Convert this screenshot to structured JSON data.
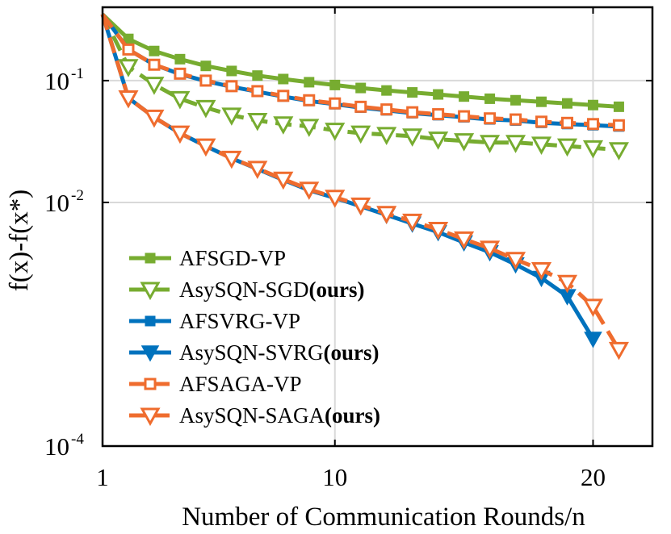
{
  "chart_data": {
    "type": "line",
    "title": "",
    "xlabel": "Number of Communication Rounds/n",
    "ylabel": "f(x)-f(x*)",
    "yscale": "log",
    "xlim": [
      1,
      22.3
    ],
    "ylim": [
      0.0001,
      0.4
    ],
    "x_ticks": [
      {
        "value": 1,
        "label": "1"
      },
      {
        "value": 10,
        "label": "10"
      },
      {
        "value": 20,
        "label": "20"
      }
    ],
    "y_ticks": [
      {
        "value": 0.1,
        "base": "10",
        "exp": "-1"
      },
      {
        "value": 0.01,
        "base": "10",
        "exp": "-2"
      },
      {
        "value": 0.0001,
        "base": "10",
        "exp": "-4"
      }
    ],
    "grid": true,
    "legend_position": "bottom-left",
    "series": [
      {
        "name": "AFSGD-VP",
        "suffix": "",
        "color": "#77ac30",
        "dash": false,
        "marker": "square-filled",
        "x": [
          1,
          2,
          3,
          4,
          5,
          6,
          7,
          8,
          9,
          10,
          11,
          12,
          13,
          14,
          15,
          16,
          17,
          18,
          19,
          20,
          21
        ],
        "y": [
          0.35,
          0.22,
          0.175,
          0.15,
          0.132,
          0.12,
          0.11,
          0.103,
          0.097,
          0.092,
          0.087,
          0.083,
          0.08,
          0.077,
          0.074,
          0.071,
          0.069,
          0.067,
          0.065,
          0.063,
          0.061
        ]
      },
      {
        "name": "AsySQN-SGD",
        "suffix": "(ours)",
        "color": "#77ac30",
        "dash": true,
        "marker": "triangle-open",
        "x": [
          1,
          2,
          3,
          4,
          5,
          6,
          7,
          8,
          9,
          10,
          11,
          12,
          13,
          14,
          15,
          16,
          17,
          18,
          19,
          20,
          21
        ],
        "y": [
          0.35,
          0.13,
          0.093,
          0.071,
          0.06,
          0.052,
          0.047,
          0.044,
          0.042,
          0.039,
          0.037,
          0.036,
          0.035,
          0.033,
          0.032,
          0.031,
          0.031,
          0.03,
          0.029,
          0.028,
          0.027
        ]
      },
      {
        "name": "AFSVRG-VP",
        "suffix": "",
        "color": "#0072bd",
        "dash": false,
        "marker": "square-filled",
        "x": [
          1,
          2,
          3,
          4,
          5,
          6,
          7,
          8,
          9,
          10,
          11,
          12,
          13,
          14,
          15,
          16,
          17,
          18,
          19,
          20,
          21
        ],
        "y": [
          0.35,
          0.18,
          0.135,
          0.113,
          0.099,
          0.089,
          0.081,
          0.074,
          0.068,
          0.064,
          0.06,
          0.057,
          0.054,
          0.052,
          0.05,
          0.048,
          0.047,
          0.045,
          0.044,
          0.043,
          0.042
        ]
      },
      {
        "name": "AsySQN-SVRG",
        "suffix": "(ours)",
        "color": "#0072bd",
        "dash": false,
        "marker": "triangle-filled",
        "x": [
          1,
          2,
          3,
          4,
          5,
          6,
          7,
          8,
          9,
          10,
          11,
          12,
          13,
          14,
          15,
          16,
          17,
          18,
          19,
          20
        ],
        "y": [
          0.35,
          0.072,
          0.05,
          0.037,
          0.029,
          0.023,
          0.0188,
          0.0153,
          0.0126,
          0.0109,
          0.0093,
          0.0079,
          0.0067,
          0.0057,
          0.0047,
          0.0039,
          0.0031,
          0.0024,
          0.0017,
          0.00076
        ]
      },
      {
        "name": "AFSAGA-VP",
        "suffix": "",
        "color": "#ef6c2e",
        "dash": true,
        "marker": "square-open",
        "x": [
          1,
          2,
          3,
          4,
          5,
          6,
          7,
          8,
          9,
          10,
          11,
          12,
          13,
          14,
          15,
          16,
          17,
          18,
          19,
          20,
          21
        ],
        "y": [
          0.35,
          0.18,
          0.135,
          0.114,
          0.1,
          0.09,
          0.082,
          0.075,
          0.069,
          0.065,
          0.061,
          0.058,
          0.055,
          0.053,
          0.051,
          0.049,
          0.048,
          0.046,
          0.045,
          0.044,
          0.043
        ]
      },
      {
        "name": "AsySQN-SAGA",
        "suffix": "(ours)",
        "color": "#ef6c2e",
        "dash": true,
        "marker": "triangle-open",
        "x": [
          1,
          2,
          3,
          4,
          5,
          6,
          7,
          8,
          9,
          10,
          11,
          12,
          13,
          14,
          15,
          16,
          17,
          18,
          19,
          20,
          21
        ],
        "y": [
          0.35,
          0.072,
          0.05,
          0.037,
          0.029,
          0.023,
          0.019,
          0.0155,
          0.0128,
          0.011,
          0.0095,
          0.0081,
          0.007,
          0.006,
          0.005,
          0.0042,
          0.0034,
          0.0028,
          0.0022,
          0.0014,
          0.00062
        ]
      }
    ]
  }
}
